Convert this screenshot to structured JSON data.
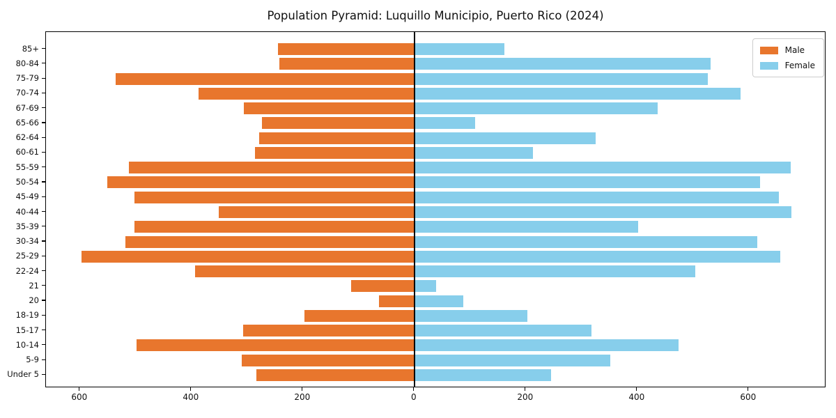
{
  "title": "Population Pyramid: Luquillo Municipio, Puerto Rico (2024)",
  "legend": {
    "male_label": "Male",
    "female_label": "Female"
  },
  "colors": {
    "male": "#e8762d",
    "female": "#87ceeb",
    "axis": "#000000"
  },
  "chart_data": {
    "type": "bar",
    "variant": "population-pyramid",
    "title": "Population Pyramid: Luquillo Municipio, Puerto Rico (2024)",
    "categories_top_to_bottom": [
      "85+",
      "80-84",
      "75-79",
      "70-74",
      "67-69",
      "65-66",
      "62-64",
      "60-61",
      "55-59",
      "50-54",
      "45-49",
      "40-44",
      "35-39",
      "30-34",
      "25-29",
      "22-24",
      "21",
      "20",
      "18-19",
      "15-17",
      "10-14",
      "5-9",
      "Under 5"
    ],
    "series": [
      {
        "name": "Male",
        "side": "left",
        "color": "#e8762d",
        "values": [
          245,
          242,
          536,
          387,
          306,
          273,
          278,
          286,
          512,
          551,
          502,
          351,
          502,
          519,
          597,
          394,
          113,
          63,
          197,
          307,
          498,
          310,
          283
        ]
      },
      {
        "name": "Female",
        "side": "right",
        "color": "#87ceeb",
        "values": [
          162,
          532,
          527,
          585,
          437,
          109,
          325,
          213,
          675,
          620,
          654,
          676,
          402,
          615,
          656,
          504,
          39,
          88,
          203,
          318,
          474,
          351,
          245
        ]
      }
    ],
    "x_tick_values": [
      -600,
      -400,
      -200,
      0,
      200,
      400,
      600
    ],
    "x_tick_labels": [
      "600",
      "400",
      "200",
      "0",
      "200",
      "400",
      "600"
    ],
    "xlim": [
      -661,
      739
    ],
    "grid": false,
    "legend_position": "upper right"
  }
}
